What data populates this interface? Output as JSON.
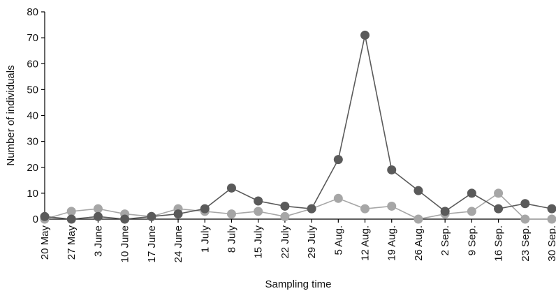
{
  "chart_data": {
    "type": "line",
    "xlabel": "Sampling time",
    "ylabel": "Number of individuals",
    "ylim": [
      0,
      80
    ],
    "yticks": [
      0,
      10,
      20,
      30,
      40,
      50,
      60,
      70,
      80
    ],
    "grid": false,
    "legend": "none",
    "categories": [
      "20 May",
      "27 May",
      "3 June",
      "10 June",
      "17 June",
      "24 June",
      "1 July",
      "8 July",
      "15 July",
      "22 July",
      "29 July",
      "5 Aug.",
      "12 Aug.",
      "19 Aug.",
      "26 Aug.",
      "2 Sep.",
      "9 Sep.",
      "16 Sep.",
      "23 Sep.",
      "30 Sep."
    ],
    "series": [
      {
        "color": "#5a5a5a",
        "values": [
          1,
          0,
          1,
          0,
          1,
          2,
          4,
          12,
          7,
          5,
          4,
          23,
          71,
          19,
          11,
          3,
          10,
          4,
          6,
          4
        ]
      },
      {
        "color": "#a6a6a6",
        "values": [
          0,
          3,
          4,
          2,
          1,
          4,
          3,
          2,
          3,
          1,
          4,
          8,
          4,
          5,
          0,
          2,
          3,
          10,
          0,
          0
        ]
      }
    ]
  }
}
